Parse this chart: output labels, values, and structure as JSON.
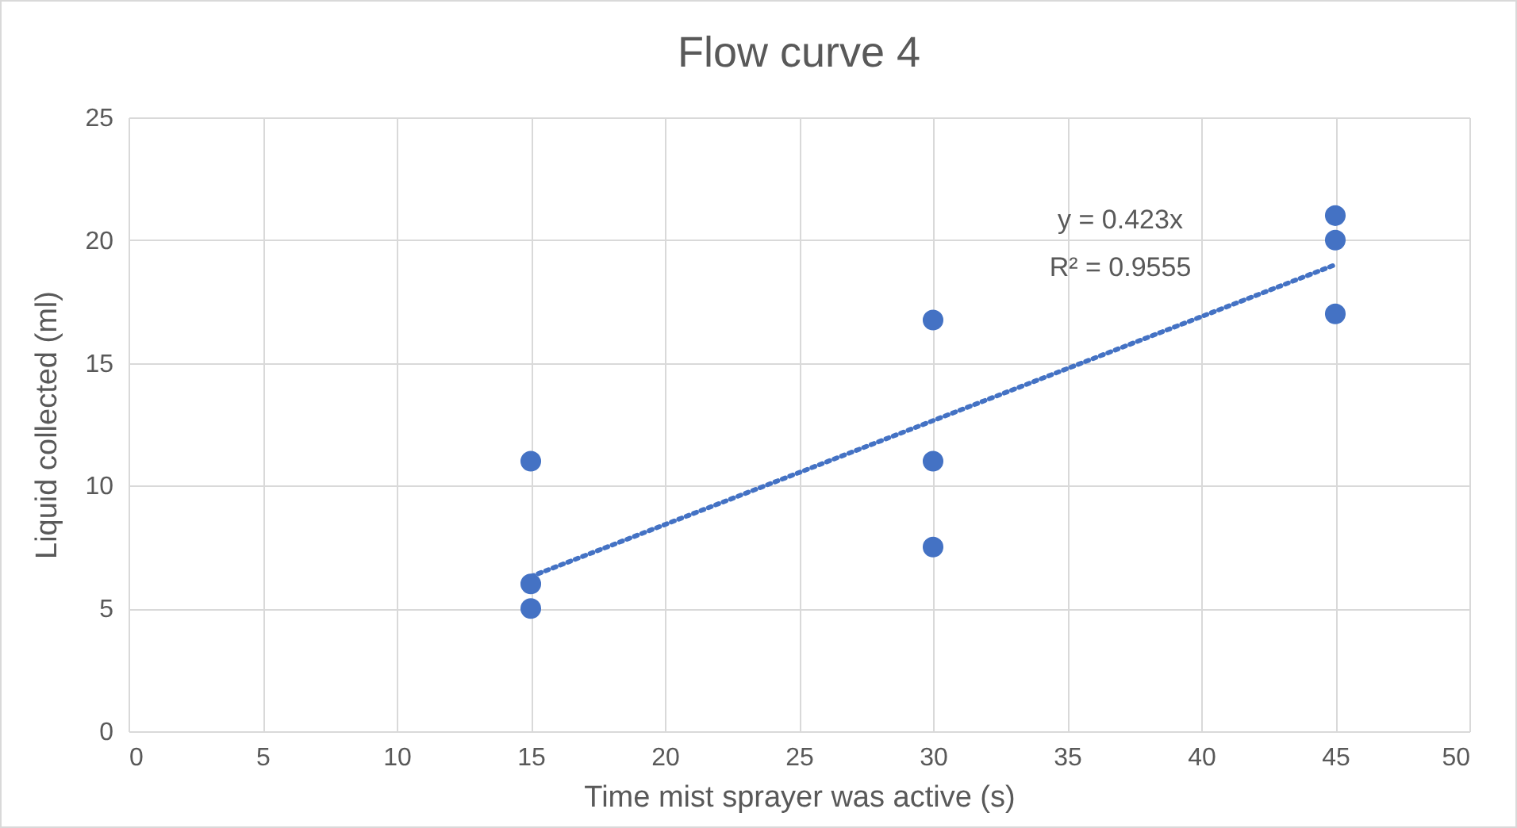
{
  "chart_data": {
    "type": "scatter",
    "title": "Flow curve 4",
    "xlabel": "Time mist sprayer was active (s)",
    "ylabel": "Liquid collected (ml)",
    "series": [
      {
        "color": "#4472c4",
        "x": [
          15,
          15,
          15,
          30,
          30,
          30,
          45,
          45,
          45
        ],
        "values": [
          11,
          6,
          5,
          16.75,
          11,
          7.5,
          21,
          20,
          17
        ]
      },
      {
        "type": "line",
        "color": "#4472c4",
        "x": [
          15,
          45
        ],
        "values": [
          6.3,
          19.0
        ],
        "line_style": "dotted",
        "marker": "none"
      }
    ],
    "annotations": [
      "y = 0.423x",
      "R² = 0.9555"
    ],
    "xlim": [
      0,
      50
    ],
    "xticks": [
      0,
      5,
      10,
      15,
      20,
      25,
      30,
      35,
      40,
      45,
      50
    ],
    "ylim": [
      0,
      25
    ],
    "yticks": [
      0,
      5,
      10,
      15,
      20,
      25
    ],
    "grid": true,
    "marker": "circle"
  }
}
